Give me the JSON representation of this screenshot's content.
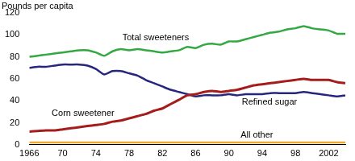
{
  "chart_data": {
    "type": "line",
    "y_label": "Pounds per capita",
    "x": [
      1966,
      1967,
      1968,
      1969,
      1970,
      1971,
      1972,
      1973,
      1974,
      1975,
      1976,
      1977,
      1978,
      1979,
      1980,
      1981,
      1982,
      1983,
      1984,
      1985,
      1986,
      1987,
      1988,
      1989,
      1990,
      1991,
      1992,
      1993,
      1994,
      1995,
      1996,
      1997,
      1998,
      1999,
      2000,
      2001,
      2002,
      2003,
      2004
    ],
    "series": [
      {
        "name": "Total sweeteners",
        "color": "#33a843",
        "values": [
          80,
          81,
          82,
          83,
          84,
          85,
          86,
          86,
          84,
          81,
          85,
          87,
          86,
          87,
          86,
          85,
          84,
          85,
          86,
          89,
          88,
          91,
          92,
          91,
          94,
          94,
          96,
          98,
          100,
          102,
          103,
          105,
          106,
          108,
          106,
          105,
          104,
          101,
          101
        ]
      },
      {
        "name": "Corn sweetener",
        "color": "#a51c1c",
        "values": [
          12,
          12.5,
          13,
          13,
          14,
          15,
          16,
          17,
          18,
          19,
          21,
          22,
          24,
          26,
          28,
          31,
          33,
          37,
          41,
          45,
          46,
          48,
          49,
          48,
          49,
          50,
          52,
          54,
          55,
          56,
          57,
          58,
          59,
          60,
          59,
          59,
          59,
          57,
          56
        ]
      },
      {
        "name": "Refined sugar",
        "color": "#26267f",
        "values": [
          70,
          71,
          71,
          72,
          73,
          73,
          73,
          72,
          69,
          64,
          67,
          67,
          65,
          63,
          59,
          56,
          53,
          50,
          48,
          46,
          44,
          45,
          45,
          45,
          46,
          45,
          46,
          46,
          46,
          47,
          47,
          47,
          47,
          48,
          47,
          46,
          45,
          44,
          45
        ]
      },
      {
        "name": "All other",
        "color": "#f0a830",
        "values": [
          2,
          2,
          2,
          2,
          2,
          2,
          2,
          2,
          2,
          2,
          2,
          2,
          2,
          2,
          2,
          2,
          2,
          2,
          2,
          2,
          2,
          2,
          2,
          2,
          2,
          2,
          2,
          2,
          2,
          2,
          2,
          2,
          2,
          2,
          2,
          2,
          2,
          2,
          2
        ]
      }
    ],
    "xlim": [
      1966,
      2004
    ],
    "xticks": [
      1966,
      {
        "value": 1970,
        "label": "70"
      },
      {
        "value": 1974,
        "label": "74"
      },
      {
        "value": 1978,
        "label": "78"
      },
      {
        "value": 1982,
        "label": "82"
      },
      {
        "value": 1986,
        "label": "86"
      },
      {
        "value": 1990,
        "label": "90"
      },
      {
        "value": 1994,
        "label": "94"
      },
      {
        "value": 1998,
        "label": "98"
      },
      2002
    ],
    "ylim": [
      0,
      120
    ],
    "yticks": [
      0,
      20,
      40,
      60,
      80,
      100,
      120
    ],
    "grid": false
  }
}
